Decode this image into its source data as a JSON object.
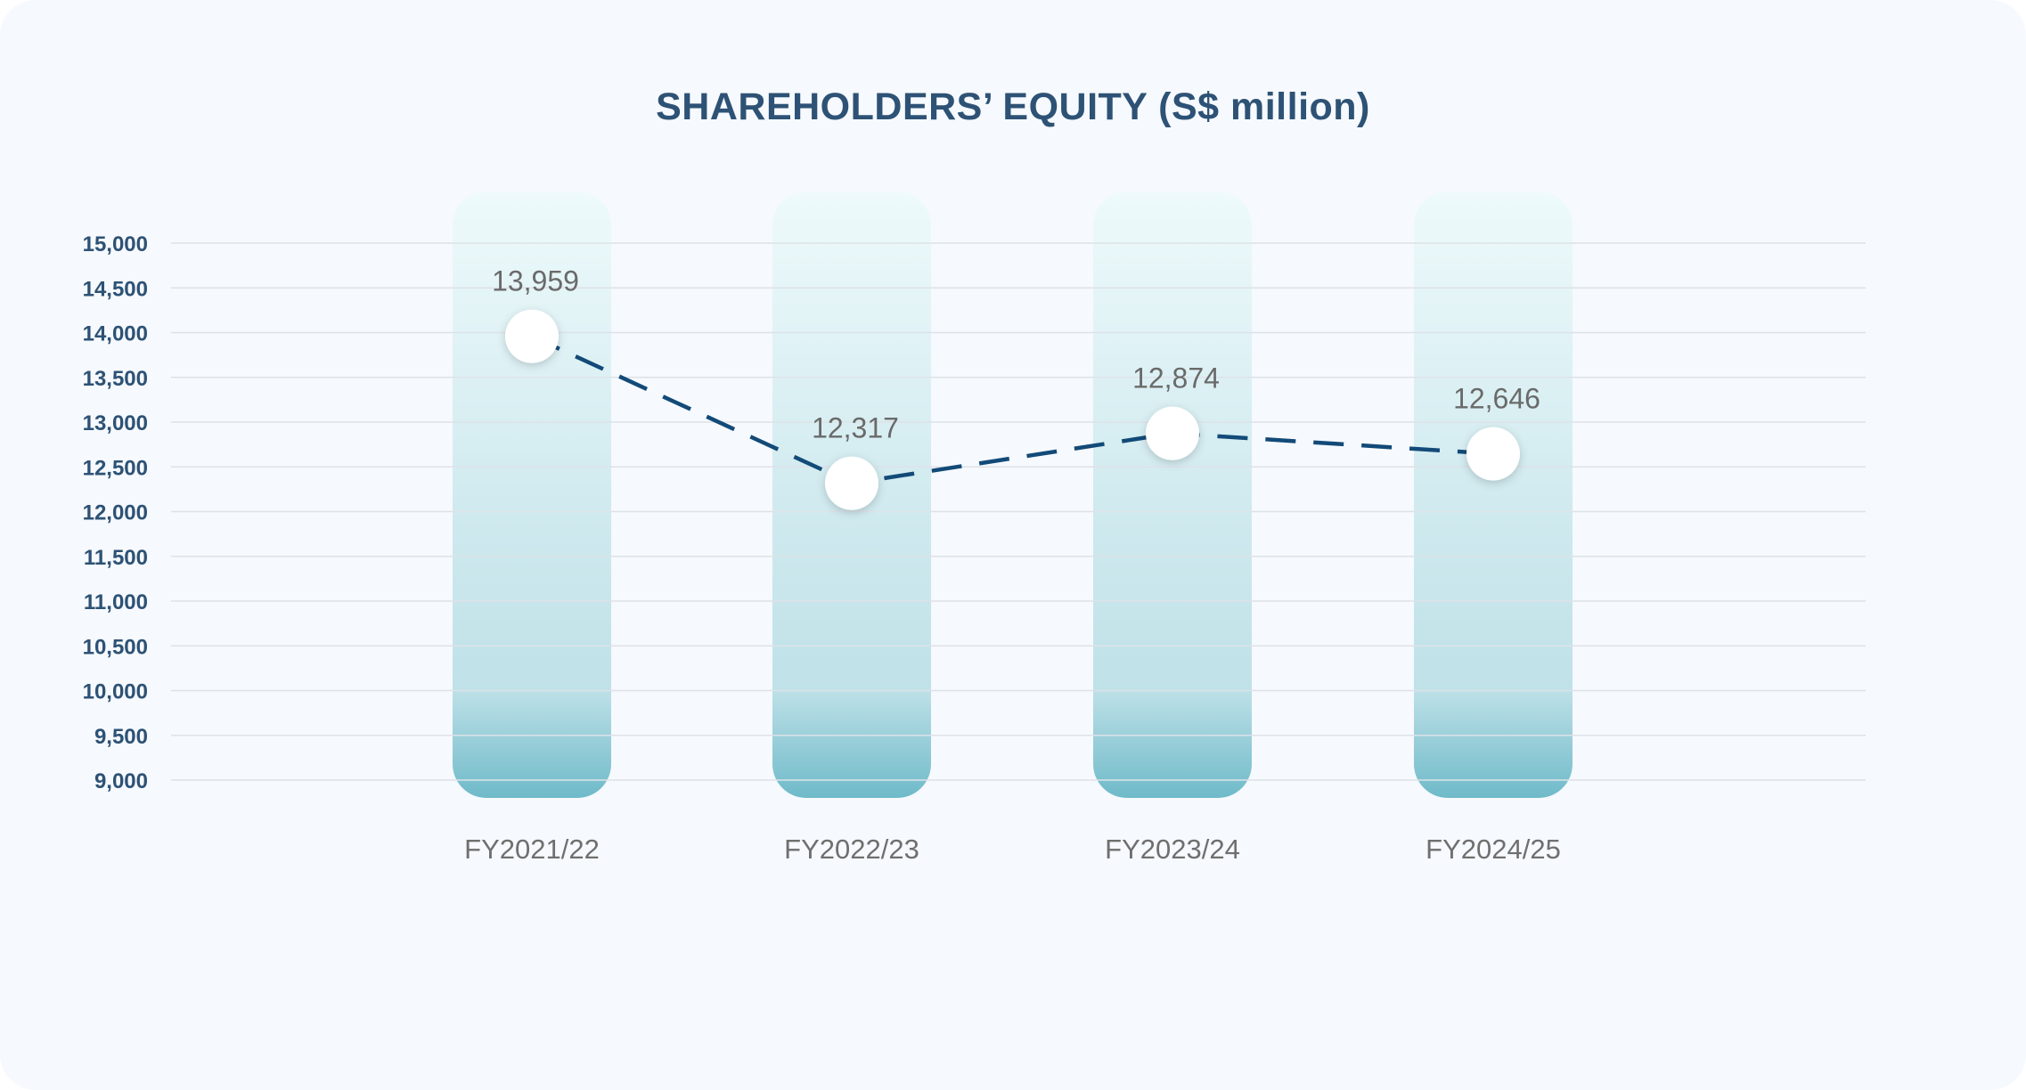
{
  "colors": {
    "title": "#2d5275",
    "ytick": "#2d5275",
    "xtick": "#6f6f6f",
    "dlabel": "#6a6a6a",
    "grid": "#dde2e8",
    "line": "#124a78",
    "bar_top": "#eefafb",
    "bar_mid": "#bfe1e8",
    "bar_bottom": "#6fbac9",
    "marker": "#ffffff"
  },
  "chart_data": {
    "type": "line",
    "title": "SHAREHOLDERS’ EQUITY (S$ million)",
    "xlabel": "",
    "ylabel": "",
    "categories": [
      "FY2021/22",
      "FY2022/23",
      "FY2023/24",
      "FY2024/25"
    ],
    "series": [
      {
        "values": [
          13959,
          12317,
          12874,
          12646
        ],
        "line_style": "dashed",
        "markers": "white-circle"
      }
    ],
    "data_labels": [
      "13,959",
      "12,317",
      "12,874",
      "12,646"
    ],
    "ylim": [
      9000,
      15000
    ],
    "yticks": [
      9000,
      9500,
      10000,
      10500,
      11000,
      11500,
      12000,
      12500,
      13000,
      13500,
      14000,
      14500,
      15000
    ],
    "ytick_labels": [
      "9,000",
      "9,500",
      "10,000",
      "10,500",
      "11,000",
      "11,500",
      "12,000",
      "12,500",
      "13,000",
      "13,500",
      "14,000",
      "14,500",
      "15,000"
    ],
    "grid": true,
    "background_columns": true,
    "legend": "none"
  }
}
